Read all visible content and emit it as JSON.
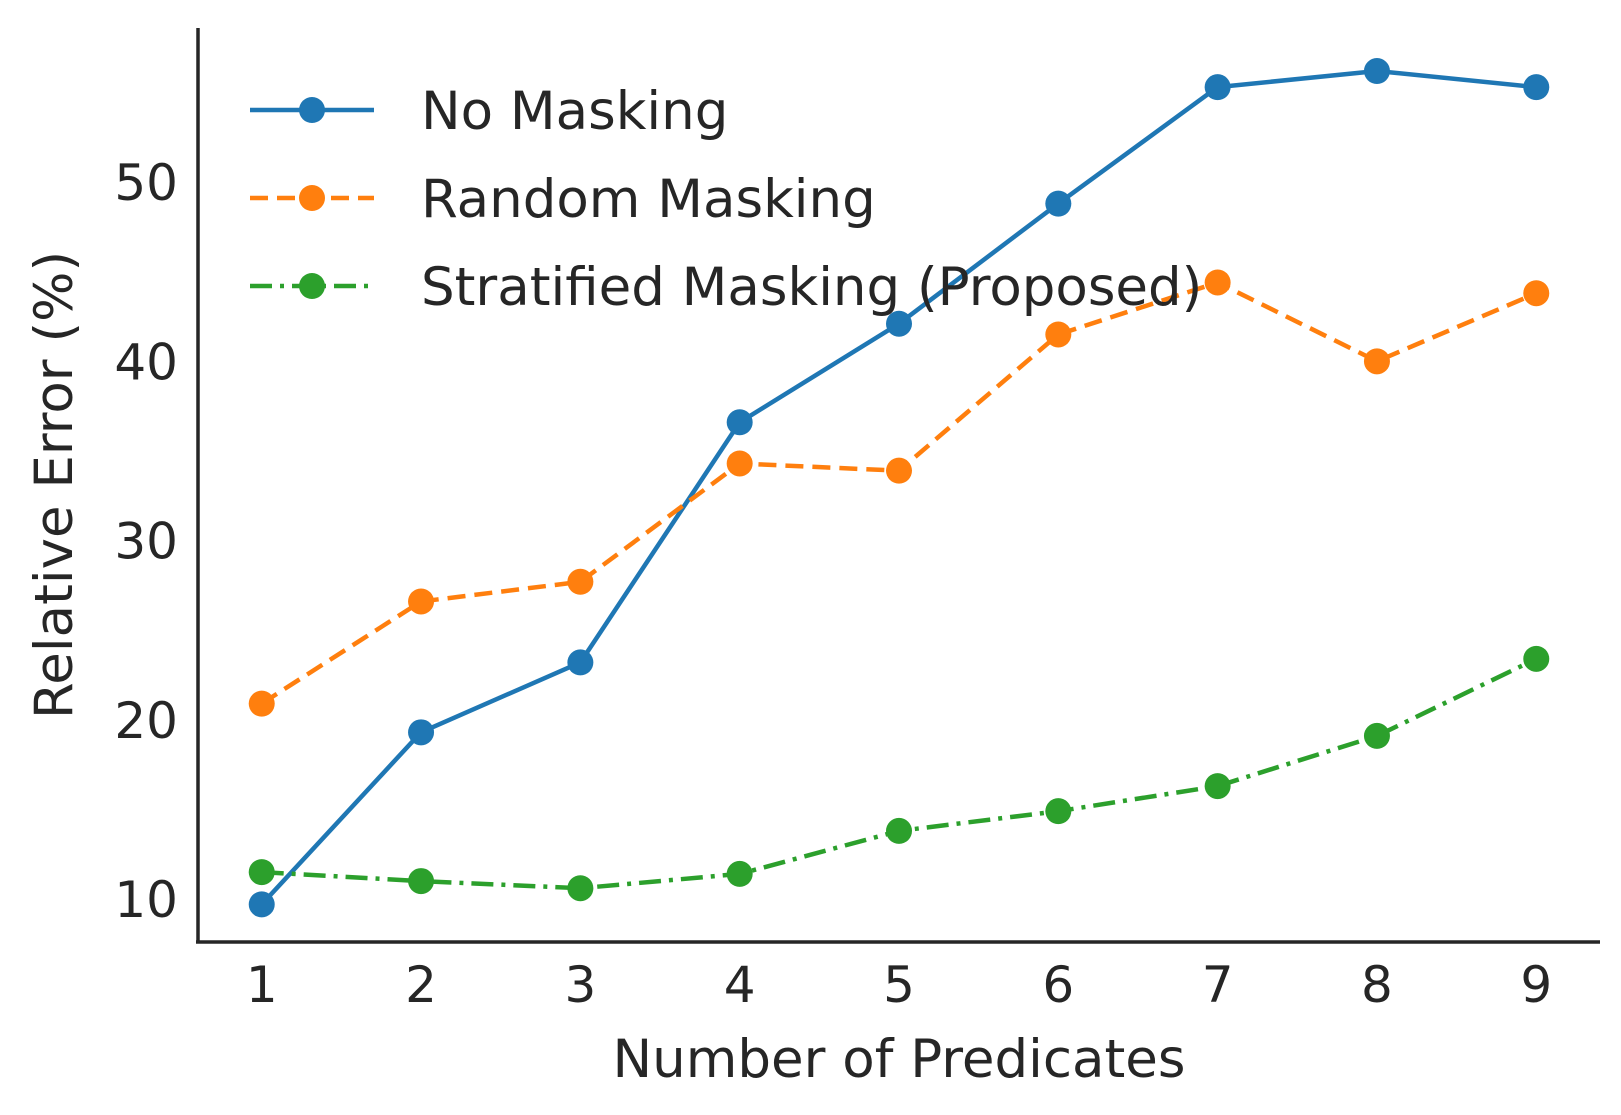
{
  "chart_data": {
    "type": "line",
    "title": "",
    "xlabel": "Number of Predicates",
    "ylabel": "Relative Error (%)",
    "x": [
      1,
      2,
      3,
      4,
      5,
      6,
      7,
      8,
      9
    ],
    "xticks": [
      "1",
      "2",
      "3",
      "4",
      "5",
      "6",
      "7",
      "8",
      "9"
    ],
    "yticks": [
      "10",
      "20",
      "30",
      "40",
      "50"
    ],
    "xlim": [
      0.6,
      9.4
    ],
    "ylim": [
      7.6,
      58.6
    ],
    "grid": false,
    "legend_position": "top-left",
    "series": [
      {
        "name": "No Masking",
        "color": "#1f77b4",
        "line_style": "solid",
        "marker": "circle",
        "values": [
          9.7,
          19.3,
          23.2,
          36.6,
          42.1,
          48.8,
          55.3,
          56.2,
          55.3
        ]
      },
      {
        "name": "Random Masking",
        "color": "#ff7f0e",
        "line_style": "dashed",
        "marker": "circle",
        "values": [
          20.9,
          26.6,
          27.7,
          34.3,
          33.9,
          41.5,
          44.4,
          40.0,
          43.8
        ]
      },
      {
        "name": "Stratified Masking (Proposed)",
        "color": "#2ca02c",
        "line_style": "dashdot",
        "marker": "circle",
        "values": [
          11.5,
          11.0,
          10.6,
          11.4,
          13.8,
          14.9,
          16.3,
          19.1,
          23.4
        ]
      }
    ]
  }
}
